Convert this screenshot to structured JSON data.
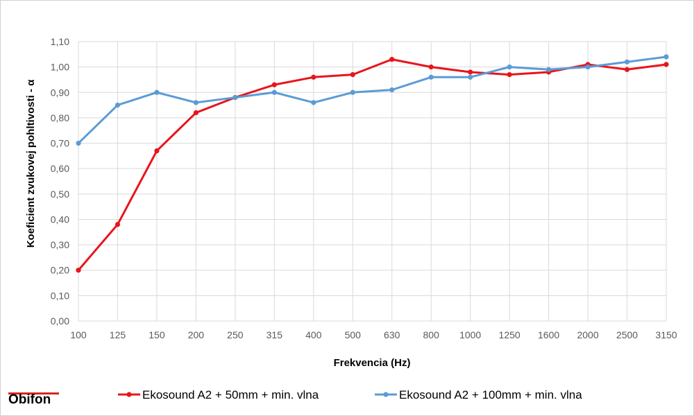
{
  "brand": {
    "name": "Obifon",
    "accent_color": "#d9251d"
  },
  "chart_data": {
    "type": "line",
    "title": "",
    "xlabel": "Frekvencia (Hz)",
    "ylabel": "Koeficient zvukovej pohltivosti - α",
    "categories": [
      "100",
      "125",
      "150",
      "200",
      "250",
      "315",
      "400",
      "500",
      "630",
      "800",
      "1000",
      "1250",
      "1600",
      "2000",
      "2500",
      "3150"
    ],
    "ylim": [
      0,
      1.1
    ],
    "yticks": [
      "0,00",
      "0,10",
      "0,20",
      "0,30",
      "0,40",
      "0,50",
      "0,60",
      "0,70",
      "0,80",
      "0,90",
      "1,00",
      "1,10"
    ],
    "grid": true,
    "legend_position": "bottom",
    "series": [
      {
        "name": "Ekosound A2 + 50mm + min. vlna",
        "color": "#e8141c",
        "values": [
          0.2,
          0.38,
          0.67,
          0.82,
          0.88,
          0.93,
          0.96,
          0.97,
          1.03,
          1.0,
          0.98,
          0.97,
          0.98,
          1.01,
          0.99,
          1.01
        ]
      },
      {
        "name": "Ekosound A2 + 100mm + min. vlna",
        "color": "#5b9bd5",
        "values": [
          0.7,
          0.85,
          0.9,
          0.86,
          0.88,
          0.9,
          0.86,
          0.9,
          0.91,
          0.96,
          0.96,
          1.0,
          0.99,
          1.0,
          1.02,
          1.04
        ]
      }
    ]
  }
}
